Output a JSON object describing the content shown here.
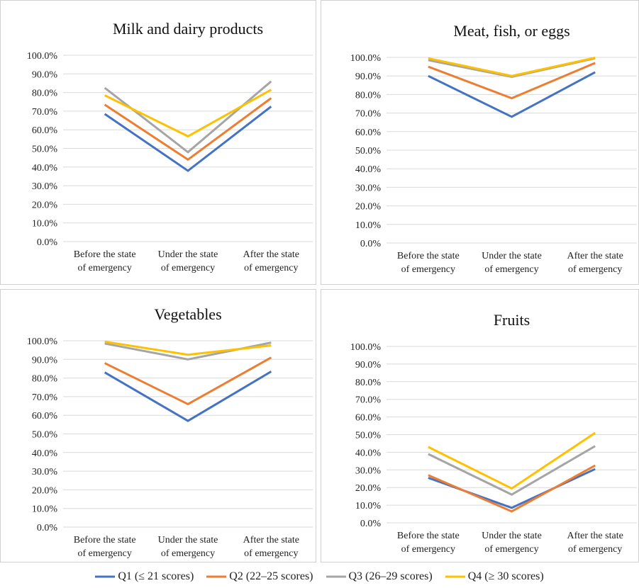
{
  "legend": [
    {
      "name": "Q1 (≤ 21 scores)",
      "color": "#4472c4"
    },
    {
      "name": "Q2 (22–25 scores)",
      "color": "#ed7d31"
    },
    {
      "name": "Q3 (26–29 scores)",
      "color": "#a5a5a5"
    },
    {
      "name": "Q4 (≥ 30 scores)",
      "color": "#ffc000"
    }
  ],
  "chart_data": [
    {
      "type": "line",
      "title": "Milk and dairy products",
      "categories": [
        "Before the state of emergency",
        "Under the state of emergency",
        "After the state of emergency"
      ],
      "series": [
        {
          "values": [
            68.5,
            38,
            72.5
          ]
        },
        {
          "values": [
            73.5,
            44,
            77
          ]
        },
        {
          "values": [
            82.5,
            48,
            86
          ]
        },
        {
          "values": [
            78.5,
            56.5,
            81.5
          ]
        }
      ],
      "ylim": [
        0,
        100
      ],
      "yticks": [
        {
          "value": 0,
          "label": "0.0%"
        },
        {
          "value": 10,
          "label": "10.0%"
        },
        {
          "value": 20,
          "label": "20.0%"
        },
        {
          "value": 30,
          "label": "30.0%"
        },
        {
          "value": 40,
          "label": "40.0%"
        },
        {
          "value": 50,
          "label": "50.0%"
        },
        {
          "value": 60,
          "label": "60.0%"
        },
        {
          "value": 70,
          "label": "70.0%"
        },
        {
          "value": 80,
          "label": "80.0%"
        },
        {
          "value": 90,
          "label": "90.0%"
        },
        {
          "value": 100,
          "label": "100.0%"
        }
      ],
      "grid": true
    },
    {
      "type": "line",
      "title": "Meat, fish, or eggs",
      "categories": [
        "Before the state of emergency",
        "Under the state of emergency",
        "After the state of emergency"
      ],
      "series": [
        {
          "values": [
            90,
            68,
            92
          ]
        },
        {
          "values": [
            95,
            78,
            97
          ]
        },
        {
          "values": [
            98.5,
            89.5,
            99.5
          ]
        },
        {
          "values": [
            99.5,
            90,
            99.8
          ]
        }
      ],
      "ylim": [
        0,
        100
      ],
      "yticks": [
        {
          "value": 0,
          "label": "0.0%"
        },
        {
          "value": 10,
          "label": "10.0%"
        },
        {
          "value": 20,
          "label": "20.0%"
        },
        {
          "value": 30,
          "label": "30.0%"
        },
        {
          "value": 40,
          "label": "40.0%"
        },
        {
          "value": 50,
          "label": "50.0%"
        },
        {
          "value": 60,
          "label": "60.0%"
        },
        {
          "value": 70,
          "label": "70.0%"
        },
        {
          "value": 80,
          "label": "80.0%"
        },
        {
          "value": 90,
          "label": "90.0%"
        },
        {
          "value": 100,
          "label": "100.0%"
        }
      ],
      "grid": true
    },
    {
      "type": "line",
      "title": "Vegetables",
      "categories": [
        "Before the state of emergency",
        "Under the state of emergency",
        "After the state of emergency"
      ],
      "series": [
        {
          "values": [
            83,
            57,
            83.5
          ]
        },
        {
          "values": [
            88,
            66,
            91
          ]
        },
        {
          "values": [
            98.5,
            90,
            99
          ]
        },
        {
          "values": [
            99.5,
            92.5,
            97.5
          ]
        }
      ],
      "ylim": [
        0,
        100
      ],
      "yticks": [
        {
          "value": 0,
          "label": "0.0%"
        },
        {
          "value": 10,
          "label": "10.0%"
        },
        {
          "value": 20,
          "label": "20.0%"
        },
        {
          "value": 30,
          "label": "30.0%"
        },
        {
          "value": 40,
          "label": "40.0%"
        },
        {
          "value": 50,
          "label": "50.0%"
        },
        {
          "value": 60,
          "label": "60.0%"
        },
        {
          "value": 70,
          "label": "70.0%"
        },
        {
          "value": 80,
          "label": "80.0%"
        },
        {
          "value": 90,
          "label": "90.0%"
        },
        {
          "value": 100,
          "label": "100.0%"
        }
      ],
      "grid": true
    },
    {
      "type": "line",
      "title": "Fruits",
      "categories": [
        "Before the state of emergency",
        "Under the state of emergency",
        "After the state of emergency"
      ],
      "series": [
        {
          "values": [
            25.5,
            8.5,
            30.5
          ]
        },
        {
          "values": [
            27,
            6.5,
            32.5
          ]
        },
        {
          "values": [
            39,
            16,
            43.5
          ]
        },
        {
          "values": [
            43,
            19.5,
            51
          ]
        }
      ],
      "ylim": [
        0,
        100
      ],
      "yticks": [
        {
          "value": 0,
          "label": "0.0%"
        },
        {
          "value": 10,
          "label": "10.0%"
        },
        {
          "value": 20,
          "label": "20.0%"
        },
        {
          "value": 30,
          "label": "30.0%"
        },
        {
          "value": 40,
          "label": "40.0%"
        },
        {
          "value": 50,
          "label": "50.0%"
        },
        {
          "value": 60,
          "label": "60.0%"
        },
        {
          "value": 70,
          "label": "70.0%"
        },
        {
          "value": 80,
          "label": "80.0%"
        },
        {
          "value": 90,
          "label": "90.0%"
        },
        {
          "value": 100,
          "label": "100.0%"
        }
      ],
      "grid": true
    }
  ]
}
